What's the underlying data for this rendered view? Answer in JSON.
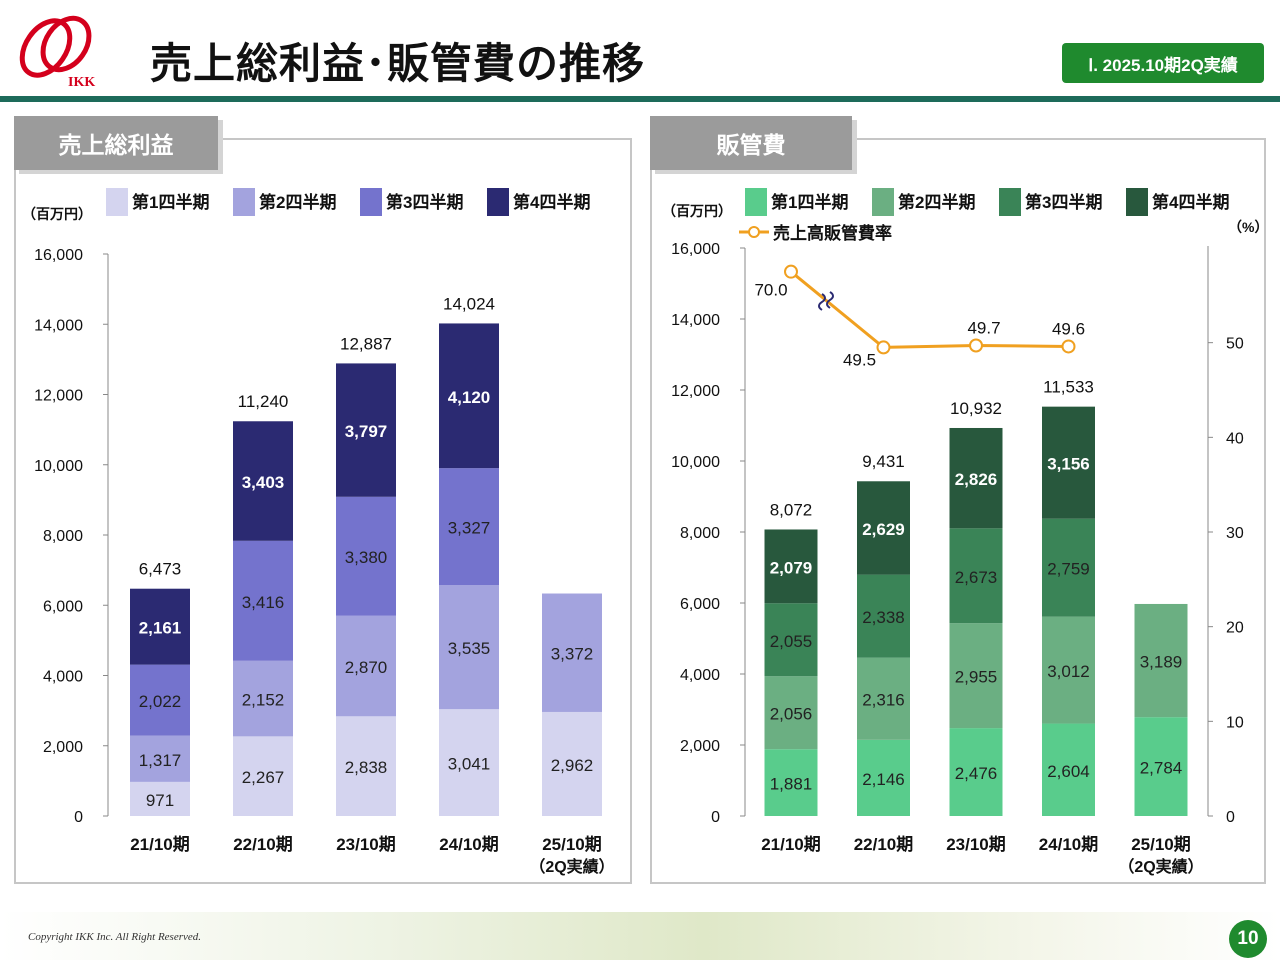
{
  "header": {
    "title": "売上総利益･販管費の推移",
    "period_badge": "Ⅰ. 2025.10期2Q実績",
    "logo_text": "IKK"
  },
  "footer": {
    "copyright": "Copyright IKK Inc. All Right Reserved.",
    "page_number": "10"
  },
  "colors": {
    "accent_green": "#1f8a2e",
    "rule_green": "#1d6b5a",
    "gp_q1": "#d4d4ef",
    "gp_q2": "#a3a3de",
    "gp_q3": "#7473cd",
    "gp_q4": "#2b2a72",
    "sga_q1": "#59cc8c",
    "sga_q2": "#6baf82",
    "sga_q3": "#3a8457",
    "sga_q4": "#28583d",
    "ratio_line": "#f0a020"
  },
  "chart_data": [
    {
      "id": "gross-profit",
      "type": "bar",
      "stacked": true,
      "title": "売上総利益",
      "unit_label": "（百万円）",
      "categories": [
        "21/10期",
        "22/10期",
        "23/10期",
        "24/10期",
        "25/10期"
      ],
      "category_sublabels": [
        "",
        "",
        "",
        "",
        "（2Q実績）"
      ],
      "series": [
        {
          "name": "第1四半期",
          "values": [
            971,
            2267,
            2838,
            3041,
            2962
          ]
        },
        {
          "name": "第2四半期",
          "values": [
            1317,
            2152,
            2870,
            3535,
            3372
          ]
        },
        {
          "name": "第3四半期",
          "values": [
            2022,
            3416,
            3380,
            3327,
            null
          ]
        },
        {
          "name": "第4四半期",
          "values": [
            2161,
            3403,
            3797,
            4120,
            null
          ]
        }
      ],
      "value_labels": [
        [
          "971",
          "2,267",
          "2,838",
          "3,041",
          "2,962"
        ],
        [
          "1,317",
          "2,152",
          "2,870",
          "3,535",
          "3,372"
        ],
        [
          "2,022",
          "3,416",
          "3,380",
          "3,327",
          ""
        ],
        [
          "2,161",
          "3,403",
          "3,797",
          "4,120",
          ""
        ]
      ],
      "totals": [
        "6,473",
        "11,240",
        "12,887",
        "14,024",
        ""
      ],
      "total_values": [
        6473,
        11240,
        12887,
        14024,
        null
      ],
      "ylim": [
        0,
        16000
      ],
      "yticks": [
        0,
        2000,
        4000,
        6000,
        8000,
        10000,
        12000,
        14000,
        16000
      ],
      "ytick_labels": [
        "0",
        "2,000",
        "4,000",
        "6,000",
        "8,000",
        "10,000",
        "12,000",
        "14,000",
        "16,000"
      ],
      "legend_position": "top",
      "grid": false
    },
    {
      "id": "sga-expenses",
      "type": "bar",
      "stacked": true,
      "title": "販管費",
      "unit_label": "（百万円）",
      "right_unit_label": "（%）",
      "categories": [
        "21/10期",
        "22/10期",
        "23/10期",
        "24/10期",
        "25/10期"
      ],
      "category_sublabels": [
        "",
        "",
        "",
        "",
        "（2Q実績）"
      ],
      "series": [
        {
          "name": "第1四半期",
          "values": [
            1881,
            2146,
            2476,
            2604,
            2784
          ]
        },
        {
          "name": "第2四半期",
          "values": [
            2056,
            2316,
            2955,
            3012,
            3189
          ]
        },
        {
          "name": "第3四半期",
          "values": [
            2055,
            2338,
            2673,
            2759,
            null
          ]
        },
        {
          "name": "第4四半期",
          "values": [
            2079,
            2629,
            2826,
            3156,
            null
          ]
        }
      ],
      "value_labels": [
        [
          "1,881",
          "2,146",
          "2,476",
          "2,604",
          "2,784"
        ],
        [
          "2,056",
          "2,316",
          "2,955",
          "3,012",
          "3,189"
        ],
        [
          "2,055",
          "2,338",
          "2,673",
          "2,759",
          ""
        ],
        [
          "2,079",
          "2,629",
          "2,826",
          "3,156",
          ""
        ]
      ],
      "totals": [
        "8,072",
        "9,431",
        "10,932",
        "11,533",
        ""
      ],
      "total_values": [
        8072,
        9431,
        10932,
        11533,
        null
      ],
      "ylim": [
        0,
        16000
      ],
      "yticks": [
        0,
        2000,
        4000,
        6000,
        8000,
        10000,
        12000,
        14000,
        16000
      ],
      "ytick_labels": [
        "0",
        "2,000",
        "4,000",
        "6,000",
        "8,000",
        "10,000",
        "12,000",
        "14,000",
        "16,000"
      ],
      "line_series": {
        "name": "売上高販管費率",
        "values": [
          70.0,
          49.5,
          49.7,
          49.6,
          null
        ],
        "labels": [
          "70.0",
          "49.5",
          "49.7",
          "49.6",
          ""
        ],
        "y2lim": [
          0,
          60
        ],
        "y2ticks": [
          0,
          10,
          20,
          30,
          40,
          50
        ],
        "y2tick_labels": [
          "0",
          "10",
          "20",
          "30",
          "40",
          "50"
        ],
        "axis_break": true
      },
      "legend_position": "top",
      "grid": false
    }
  ]
}
